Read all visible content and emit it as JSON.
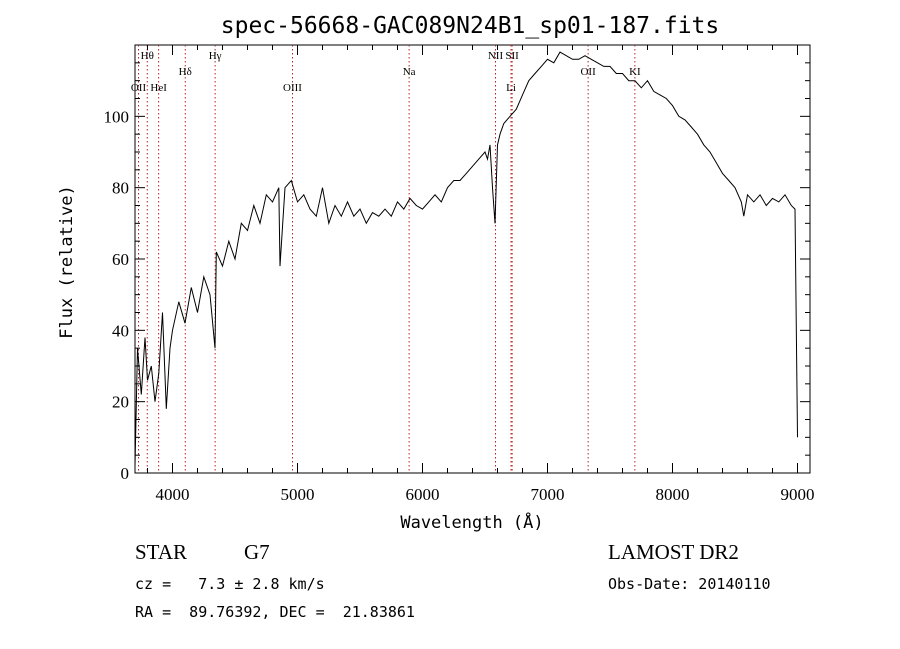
{
  "chart_data": {
    "type": "line",
    "title": "spec-56668-GAC089N24B1_sp01-187.fits",
    "xlabel": "Wavelength (Å)",
    "ylabel": "Flux (relative)",
    "xlim": [
      3700,
      9100
    ],
    "ylim": [
      0,
      120
    ],
    "xticks": [
      "4000",
      "5000",
      "6000",
      "7000",
      "8000",
      "9000"
    ],
    "yticks": [
      "0",
      "20",
      "40",
      "60",
      "80",
      "100"
    ],
    "grid": false,
    "series": [
      {
        "x": [
          3700,
          3720,
          3750,
          3780,
          3800,
          3830,
          3860,
          3890,
          3920,
          3950,
          3980,
          4000,
          4050,
          4100,
          4150,
          4200,
          4250,
          4300,
          4340,
          4350,
          4400,
          4450,
          4500,
          4550,
          4600,
          4650,
          4700,
          4750,
          4800,
          4850,
          4860,
          4900,
          4950,
          5000,
          5050,
          5100,
          5150,
          5200,
          5250,
          5300,
          5350,
          5400,
          5450,
          5500,
          5550,
          5600,
          5650,
          5700,
          5750,
          5800,
          5850,
          5900,
          5950,
          6000,
          6050,
          6100,
          6150,
          6200,
          6250,
          6300,
          6350,
          6400,
          6450,
          6500,
          6520,
          6540,
          6560,
          6580,
          6600,
          6620,
          6650,
          6700,
          6750,
          6800,
          6850,
          6900,
          6950,
          7000,
          7050,
          7100,
          7150,
          7200,
          7250,
          7300,
          7350,
          7400,
          7450,
          7500,
          7550,
          7600,
          7650,
          7700,
          7750,
          7800,
          7850,
          7900,
          7950,
          8000,
          8050,
          8100,
          8150,
          8200,
          8250,
          8300,
          8350,
          8400,
          8450,
          8500,
          8550,
          8570,
          8600,
          8650,
          8700,
          8750,
          8800,
          8850,
          8900,
          8950,
          8980,
          9000
        ],
        "y": [
          2,
          35,
          22,
          38,
          26,
          30,
          20,
          28,
          45,
          18,
          35,
          40,
          48,
          42,
          52,
          45,
          55,
          50,
          35,
          62,
          58,
          65,
          60,
          70,
          68,
          75,
          70,
          78,
          76,
          80,
          58,
          80,
          82,
          76,
          78,
          74,
          72,
          80,
          70,
          75,
          72,
          76,
          72,
          74,
          70,
          73,
          72,
          74,
          72,
          76,
          74,
          77,
          75,
          74,
          76,
          78,
          76,
          80,
          82,
          82,
          84,
          86,
          88,
          90,
          88,
          92,
          80,
          70,
          92,
          95,
          98,
          100,
          102,
          106,
          110,
          112,
          114,
          116,
          115,
          118,
          117,
          116,
          116,
          117,
          116,
          115,
          114,
          114,
          112,
          112,
          110,
          110,
          108,
          110,
          107,
          106,
          105,
          103,
          100,
          99,
          97,
          95,
          92,
          90,
          87,
          84,
          82,
          80,
          76,
          72,
          78,
          76,
          78,
          75,
          77,
          76,
          78,
          75,
          74,
          10
        ]
      }
    ],
    "annotations": [
      {
        "label": "Hθ",
        "x": 3798,
        "row": 1
      },
      {
        "label": "OII",
        "x": 3728,
        "row": 2
      },
      {
        "label": "HeI",
        "x": 3889,
        "row": 2
      },
      {
        "label": "Hδ",
        "x": 4102,
        "row": 1.5
      },
      {
        "label": "Hγ",
        "x": 4341,
        "row": 1
      },
      {
        "label": "OIII",
        "x": 4960,
        "row": 2
      },
      {
        "label": "Na",
        "x": 5893,
        "row": 1.5
      },
      {
        "label": "NII",
        "x": 6584,
        "row": 1
      },
      {
        "label": "SII",
        "x": 6717,
        "row": 1
      },
      {
        "label": "Li",
        "x": 6708,
        "row": 2
      },
      {
        "label": "OII",
        "x": 7325,
        "row": 1.5
      },
      {
        "label": "KI",
        "x": 7699,
        "row": 1.5
      }
    ],
    "line_markers": [
      3728,
      3798,
      3889,
      4102,
      4341,
      4960,
      5893,
      6584,
      6708,
      6717,
      7325,
      7699
    ]
  },
  "info": {
    "object_class": "STAR",
    "subclass": "G7",
    "survey": "LAMOST DR2",
    "redshift": "cz =   7.3 ± 2.8 km/s",
    "obs_date": "Obs-Date: 20140110",
    "coords": "RA =  89.76392, DEC =  21.83861"
  }
}
